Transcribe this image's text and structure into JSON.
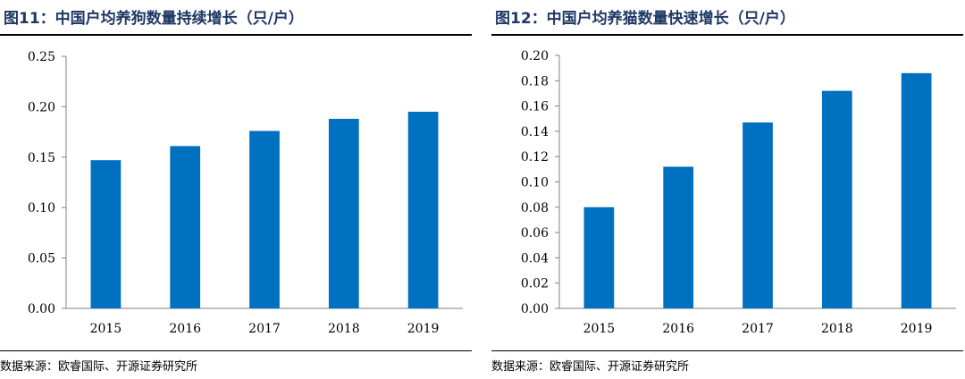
{
  "panels": [
    {
      "title": "图11：中国户均养狗数量持续增长（只/户）",
      "source": "数据来源：欧睿国际、开源证券研究所"
    },
    {
      "title": "图12：中国户均养猫数量快速增长（只/户）",
      "source": "数据来源：欧睿国际、开源证券研究所"
    }
  ],
  "colors": {
    "bar": "#0070c0",
    "axis": "#808080",
    "rule": "#000000"
  },
  "chart_data": [
    {
      "type": "bar",
      "title": "图11：中国户均养狗数量持续增长（只/户）",
      "categories": [
        "2015",
        "2016",
        "2017",
        "2018",
        "2019"
      ],
      "values": [
        0.147,
        0.161,
        0.176,
        0.188,
        0.195
      ],
      "ylim": [
        0,
        0.25
      ],
      "yticks": [
        "0.00",
        "0.05",
        "0.10",
        "0.15",
        "0.20",
        "0.25"
      ],
      "xlabel": "",
      "ylabel": "",
      "grid": false,
      "legend": "none"
    },
    {
      "type": "bar",
      "title": "图12：中国户均养猫数量快速增长（只/户）",
      "categories": [
        "2015",
        "2016",
        "2017",
        "2018",
        "2019"
      ],
      "values": [
        0.08,
        0.112,
        0.147,
        0.172,
        0.186
      ],
      "ylim": [
        0,
        0.2
      ],
      "yticks": [
        "0.00",
        "0.02",
        "0.04",
        "0.06",
        "0.08",
        "0.10",
        "0.12",
        "0.14",
        "0.16",
        "0.18",
        "0.20"
      ],
      "xlabel": "",
      "ylabel": "",
      "grid": false,
      "legend": "none"
    }
  ]
}
